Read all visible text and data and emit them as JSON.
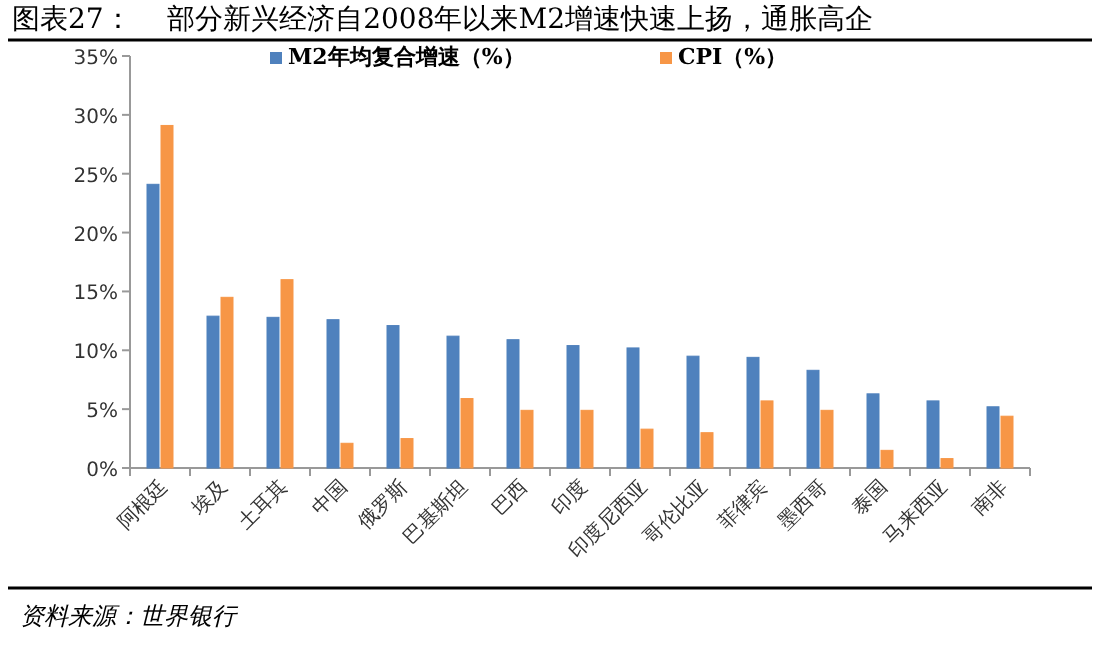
{
  "chart_data": {
    "type": "bar",
    "title": "图表27：    部分新兴经济自2008年以来M2增速快速上扬，通胀高企",
    "categories": [
      "阿根廷",
      "埃及",
      "土耳其",
      "中国",
      "俄罗斯",
      "巴基斯坦",
      "巴西",
      "印度",
      "印度尼西亚",
      "哥伦比亚",
      "菲律宾",
      "墨西哥",
      "泰国",
      "马来西亚",
      "南非"
    ],
    "series": [
      {
        "name": "M2年均复合增速（%）",
        "color": "#4f81bd",
        "values": [
          24.1,
          12.9,
          12.8,
          12.6,
          12.1,
          11.2,
          10.9,
          10.4,
          10.2,
          9.5,
          9.4,
          8.3,
          6.3,
          5.7,
          5.2
        ]
      },
      {
        "name": "CPI（%）",
        "color": "#f79646",
        "values": [
          29.1,
          14.5,
          16.0,
          2.1,
          2.5,
          5.9,
          4.9,
          4.9,
          3.3,
          3.0,
          5.7,
          4.9,
          1.5,
          0.8,
          4.4
        ]
      }
    ],
    "ylim": [
      0,
      35
    ],
    "yticks": [
      {
        "value": 0,
        "label": "0%"
      },
      {
        "value": 5,
        "label": "5%"
      },
      {
        "value": 10,
        "label": "10%"
      },
      {
        "value": 15,
        "label": "15%"
      },
      {
        "value": 20,
        "label": "20%"
      },
      {
        "value": 25,
        "label": "25%"
      },
      {
        "value": 30,
        "label": "30%"
      },
      {
        "value": 35,
        "label": "35%"
      }
    ],
    "legend": "top",
    "annotations": [
      "资料来源：世界银行"
    ]
  }
}
